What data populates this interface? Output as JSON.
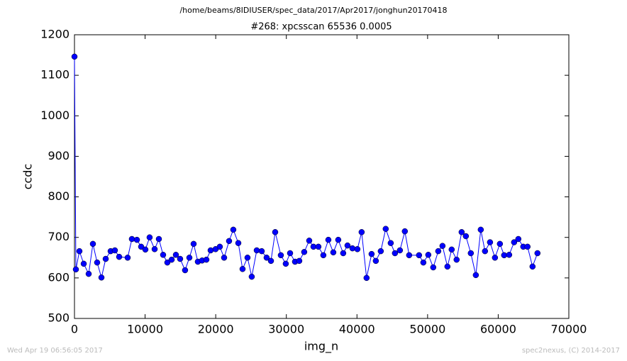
{
  "chart_data": {
    "type": "line",
    "suptitle": "/home/beams/8IDIUSER/spec_data/2017/Apr2017/jonghun20170418",
    "title": "#268: xpcsscan 65536 0.0005",
    "xlabel": "img_n",
    "ylabel": "ccdc",
    "footer_left": "Wed Apr 19 06:56:05 2017",
    "footer_right": "spec2nexus, (C) 2014-2017",
    "xlim": [
      0,
      70000
    ],
    "ylim": [
      500,
      1200
    ],
    "xticks": [
      0,
      10000,
      20000,
      30000,
      40000,
      50000,
      60000,
      70000
    ],
    "yticks": [
      500,
      600,
      700,
      800,
      900,
      1000,
      1100,
      1200
    ],
    "x": [
      0,
      200,
      700,
      1310,
      2010,
      2610,
      3210,
      3820,
      4420,
      5120,
      5720,
      6330,
      7530,
      8130,
      8840,
      9440,
      10040,
      10640,
      11350,
      11950,
      12550,
      13150,
      13760,
      14360,
      14960,
      15660,
      16270,
      16870,
      17470,
      18070,
      18680,
      19280,
      19980,
      20580,
      21190,
      21890,
      22490,
      23200,
      23800,
      24500,
      25100,
      25810,
      26510,
      27210,
      27820,
      28420,
      29220,
      29920,
      30530,
      31230,
      31830,
      32530,
      33240,
      33840,
      34540,
      35240,
      35950,
      36650,
      37350,
      38050,
      38660,
      39360,
      40060,
      40660,
      41360,
      42070,
      42670,
      43370,
      44070,
      44780,
      45380,
      46080,
      46780,
      47390,
      48790,
      49400,
      50100,
      50800,
      51510,
      52110,
      52810,
      53410,
      54110,
      54820,
      55420,
      56120,
      56830,
      57530,
      58130,
      58840,
      59540,
      60240,
      60840,
      61550,
      62250,
      62850,
      63550,
      64150,
      64860,
      65560
    ],
    "series": [
      {
        "name": "ccdc",
        "color": "#0000ff",
        "values": [
          1146,
          621,
          666,
          635,
          610,
          684,
          638,
          601,
          647,
          666,
          668,
          652,
          650,
          696,
          694,
          677,
          670,
          700,
          671,
          696,
          657,
          638,
          645,
          657,
          647,
          619,
          650,
          684,
          640,
          643,
          645,
          668,
          671,
          677,
          650,
          691,
          719,
          686,
          622,
          650,
          603,
          668,
          666,
          650,
          642,
          713,
          656,
          635,
          661,
          640,
          642,
          664,
          692,
          677,
          677,
          656,
          694,
          663,
          694,
          661,
          680,
          673,
          671,
          713,
          600,
          659,
          642,
          666,
          721,
          686,
          661,
          668,
          715,
          656,
          656,
          638,
          657,
          626,
          666,
          679,
          628,
          670,
          645,
          713,
          703,
          661,
          607,
          719,
          666,
          688,
          650,
          684,
          656,
          657,
          688,
          696,
          677,
          677,
          628,
          661
        ]
      }
    ]
  }
}
